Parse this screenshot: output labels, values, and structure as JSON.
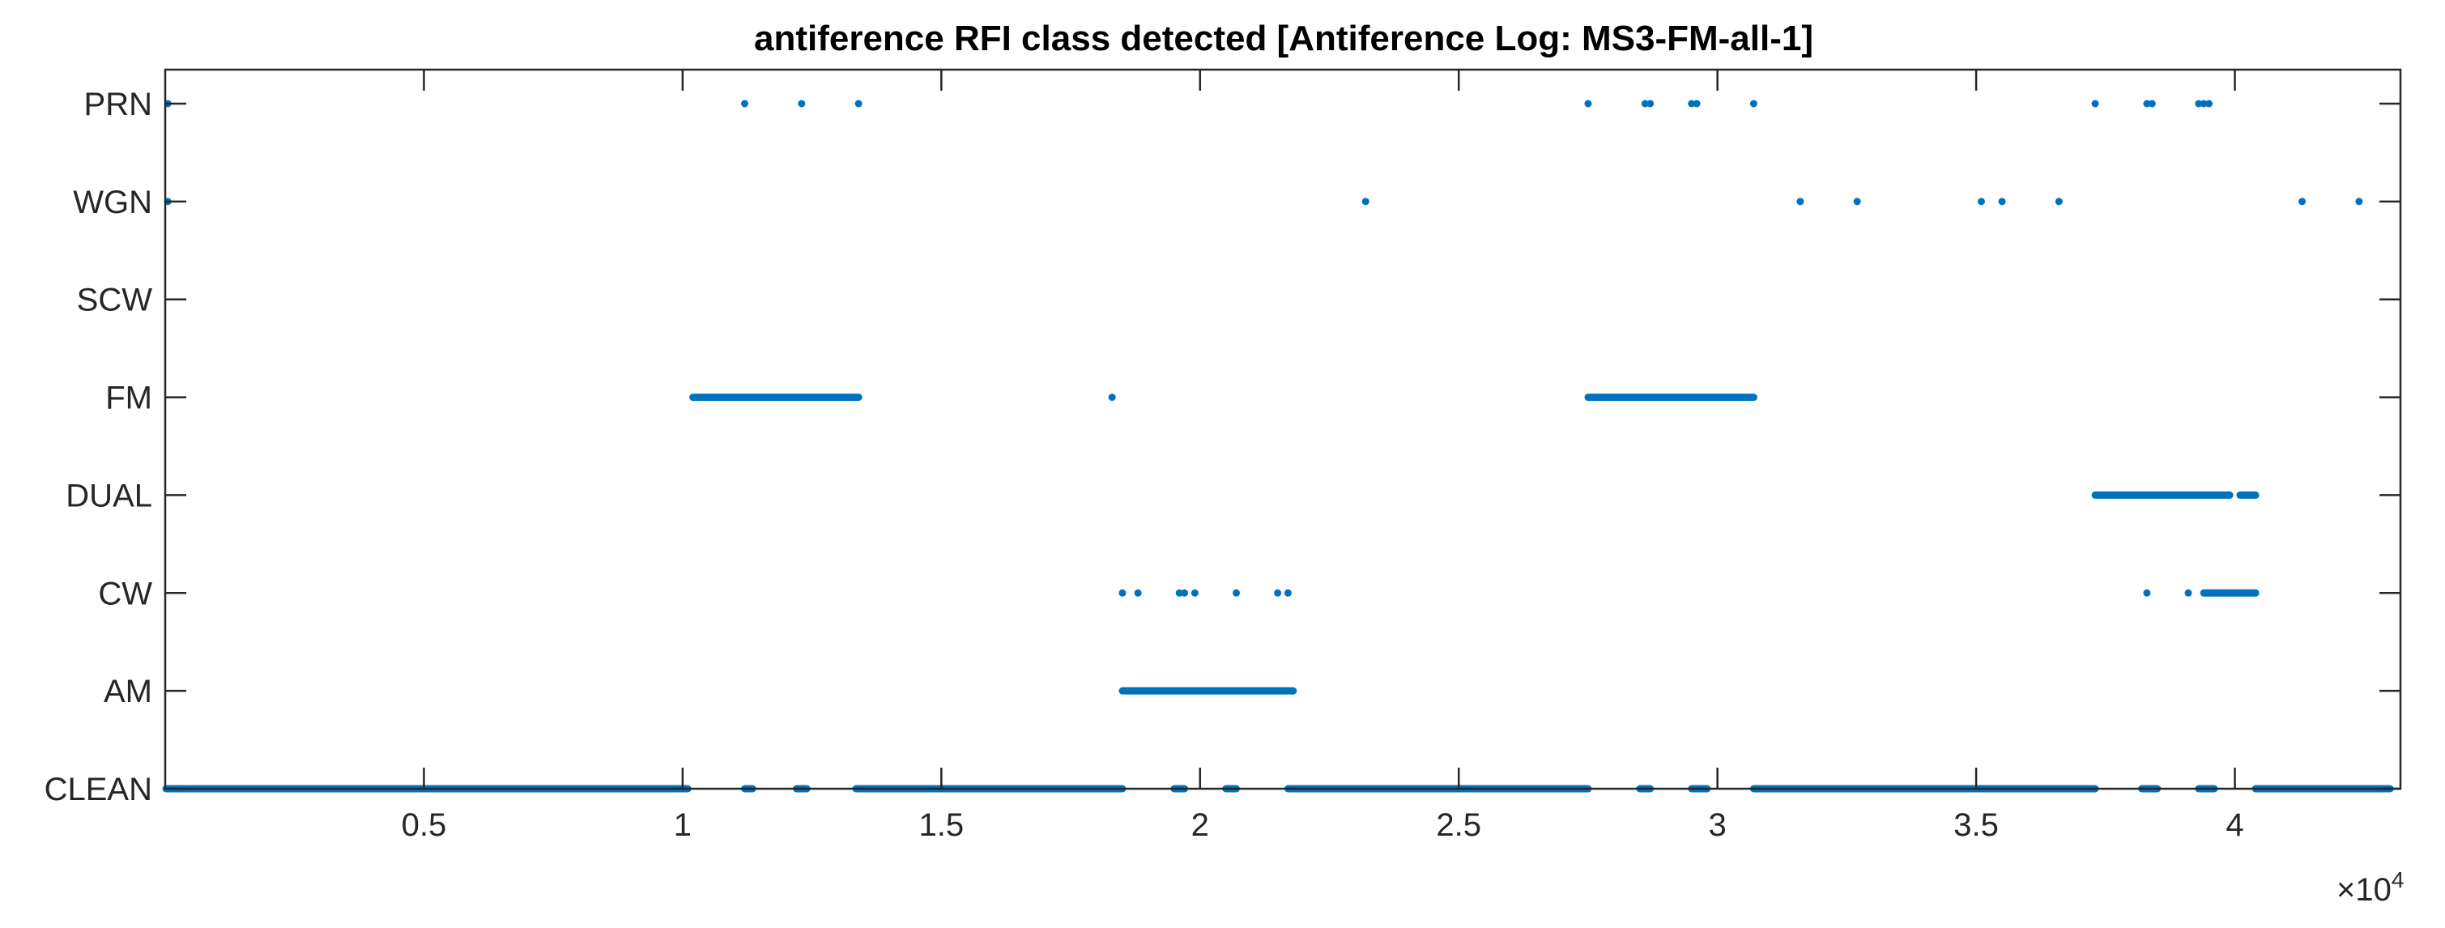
{
  "chart_data": {
    "type": "scatter",
    "title": "antiference RFI class detected [Antiference Log: MS3-FM-all-1]",
    "xlabel": "",
    "ylabel": "",
    "xlim": [
      0,
      43200
    ],
    "x_ticks": [
      5000,
      10000,
      15000,
      20000,
      25000,
      30000,
      35000,
      40000
    ],
    "x_tick_labels": [
      "0.5",
      "1",
      "1.5",
      "2",
      "2.5",
      "3",
      "3.5",
      "4"
    ],
    "x_exponent_prefix": "×10",
    "x_exponent": "4",
    "categories": [
      "CLEAN",
      "AM",
      "CW",
      "DUAL",
      "FM",
      "SCW",
      "WGN",
      "PRN"
    ],
    "marker_color": "#0072BD",
    "grid": false,
    "legend": "none",
    "segments": [
      {
        "class": "CLEAN",
        "x": [
          0,
          10100
        ]
      },
      {
        "class": "CLEAN",
        "x": [
          11200,
          11350
        ]
      },
      {
        "class": "CLEAN",
        "x": [
          12200,
          12400
        ]
      },
      {
        "class": "CLEAN",
        "x": [
          13350,
          18500
        ]
      },
      {
        "class": "CLEAN",
        "x": [
          19500,
          19700
        ]
      },
      {
        "class": "CLEAN",
        "x": [
          20500,
          20700
        ]
      },
      {
        "class": "CLEAN",
        "x": [
          21700,
          27500
        ]
      },
      {
        "class": "CLEAN",
        "x": [
          28500,
          28700
        ]
      },
      {
        "class": "CLEAN",
        "x": [
          29500,
          29800
        ]
      },
      {
        "class": "CLEAN",
        "x": [
          30700,
          37300
        ]
      },
      {
        "class": "CLEAN",
        "x": [
          38200,
          38500
        ]
      },
      {
        "class": "CLEAN",
        "x": [
          39300,
          39600
        ]
      },
      {
        "class": "CLEAN",
        "x": [
          40400,
          43000
        ]
      },
      {
        "class": "AM",
        "x": [
          18500,
          21800
        ]
      },
      {
        "class": "CW",
        "x": [
          39400,
          40400
        ]
      },
      {
        "class": "DUAL",
        "x": [
          37300,
          39900
        ]
      },
      {
        "class": "DUAL",
        "x": [
          40100,
          40400
        ]
      },
      {
        "class": "FM",
        "x": [
          10200,
          13400
        ]
      },
      {
        "class": "FM",
        "x": [
          27500,
          30700
        ]
      }
    ],
    "points": [
      {
        "class": "PRN",
        "x": [
          50,
          11200,
          12300,
          13400,
          27500,
          28600,
          28700,
          29500,
          29600,
          30700,
          37300,
          38300,
          38400,
          39300,
          39400,
          39500
        ]
      },
      {
        "class": "WGN",
        "x": [
          50,
          23200,
          31600,
          32700,
          35100,
          35500,
          36600,
          41300,
          42400
        ]
      },
      {
        "class": "FM",
        "x": [
          18300
        ]
      },
      {
        "class": "CW",
        "x": [
          18500,
          18800,
          19600,
          19700,
          19900,
          20700,
          21500,
          21700,
          38300,
          39100
        ]
      }
    ]
  }
}
